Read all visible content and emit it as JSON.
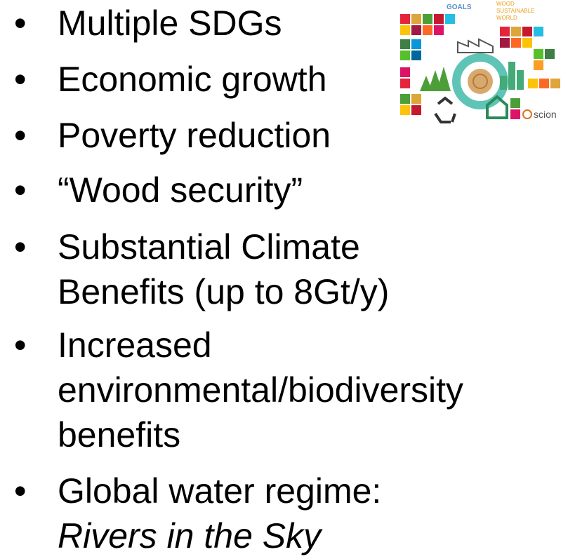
{
  "bullets": [
    {
      "lines": [
        "Multiple SDGs"
      ]
    },
    {
      "lines": [
        "Economic growth"
      ]
    },
    {
      "lines": [
        "Poverty reduction"
      ]
    },
    {
      "lines": [
        "“Wood security”"
      ]
    },
    {
      "lines": [
        "Substantial Climate",
        "Benefits (up to 8Gt/y)"
      ]
    },
    {
      "lines": [
        "Increased",
        "environmental/biodiversity",
        "benefits"
      ]
    },
    {
      "lines": [
        "Global water regime:"
      ],
      "emphasis": "Rivers in the Sky"
    }
  ],
  "infographic": {
    "left_heading": "GOALS",
    "right_heading": [
      "WOOD",
      "SUSTAINABLE",
      "WORLD"
    ],
    "logo": "scion"
  }
}
